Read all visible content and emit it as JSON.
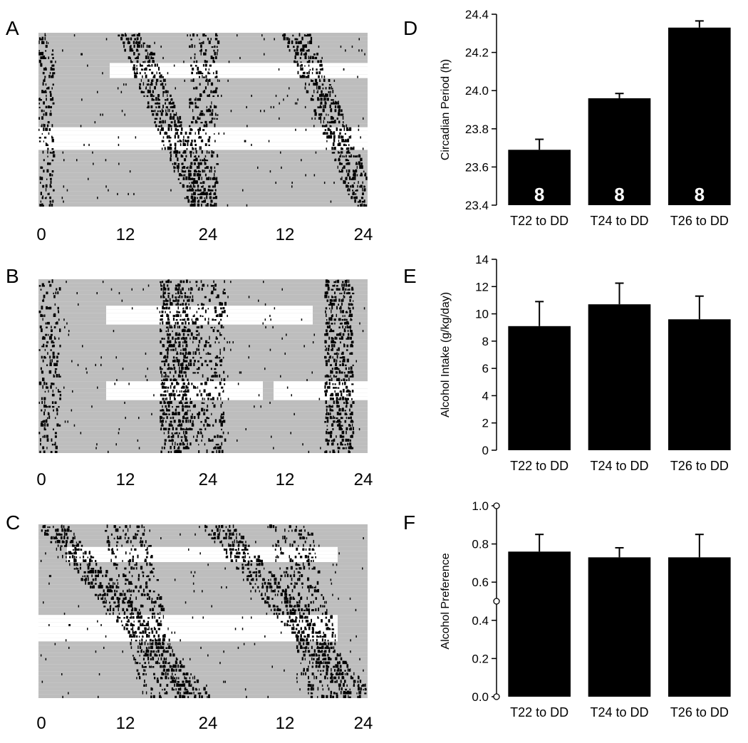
{
  "panel_letters": {
    "A": "A",
    "B": "B",
    "C": "C",
    "D": "D",
    "E": "E",
    "F": "F"
  },
  "actogram_axis_labels": [
    "0",
    "12",
    "24",
    "12",
    "24"
  ],
  "colors": {
    "bar": "#000000",
    "background_band": "#bdbdbd",
    "activity": "#000000"
  },
  "chart_data": [
    {
      "panel": "D",
      "type": "bar",
      "categories": [
        "T22 to DD",
        "T24 to DD",
        "T26 to DD"
      ],
      "values": [
        23.69,
        23.96,
        24.33
      ],
      "errors": [
        0.055,
        0.025,
        0.035
      ],
      "bar_labels": [
        "8",
        "8",
        "8"
      ],
      "ylabel": "Circadian Period (h)",
      "ylim": [
        23.4,
        24.4
      ],
      "yticks": [
        23.4,
        23.6,
        23.8,
        24.0,
        24.2,
        24.4
      ],
      "ytick_labels": [
        "23.4",
        "23.6",
        "23.8",
        "24.0",
        "24.2",
        "24.4"
      ]
    },
    {
      "panel": "E",
      "type": "bar",
      "categories": [
        "T22 to DD",
        "T24 to DD",
        "T26 to DD"
      ],
      "values": [
        9.1,
        10.7,
        9.6
      ],
      "errors": [
        1.8,
        1.55,
        1.7
      ],
      "ylabel": "Alcohol Intake (g/kg/day)",
      "ylim": [
        0,
        14
      ],
      "yticks": [
        0,
        2,
        4,
        6,
        8,
        10,
        12,
        14
      ],
      "ytick_labels": [
        "0",
        "2",
        "4",
        "6",
        "8",
        "10",
        "12",
        "14"
      ]
    },
    {
      "panel": "F",
      "type": "bar",
      "categories": [
        "T22 to DD",
        "T24 to DD",
        "T26 to DD"
      ],
      "values": [
        0.76,
        0.73,
        0.73
      ],
      "errors": [
        0.09,
        0.05,
        0.12
      ],
      "ylabel": "Alcohol Preference",
      "ylim": [
        0.0,
        1.0
      ],
      "yticks": [
        0.0,
        0.2,
        0.4,
        0.6,
        0.8,
        1.0
      ],
      "ytick_labels": [
        "0.0",
        "0.2",
        "0.4",
        "0.6",
        "0.8",
        "1.0"
      ]
    }
  ]
}
